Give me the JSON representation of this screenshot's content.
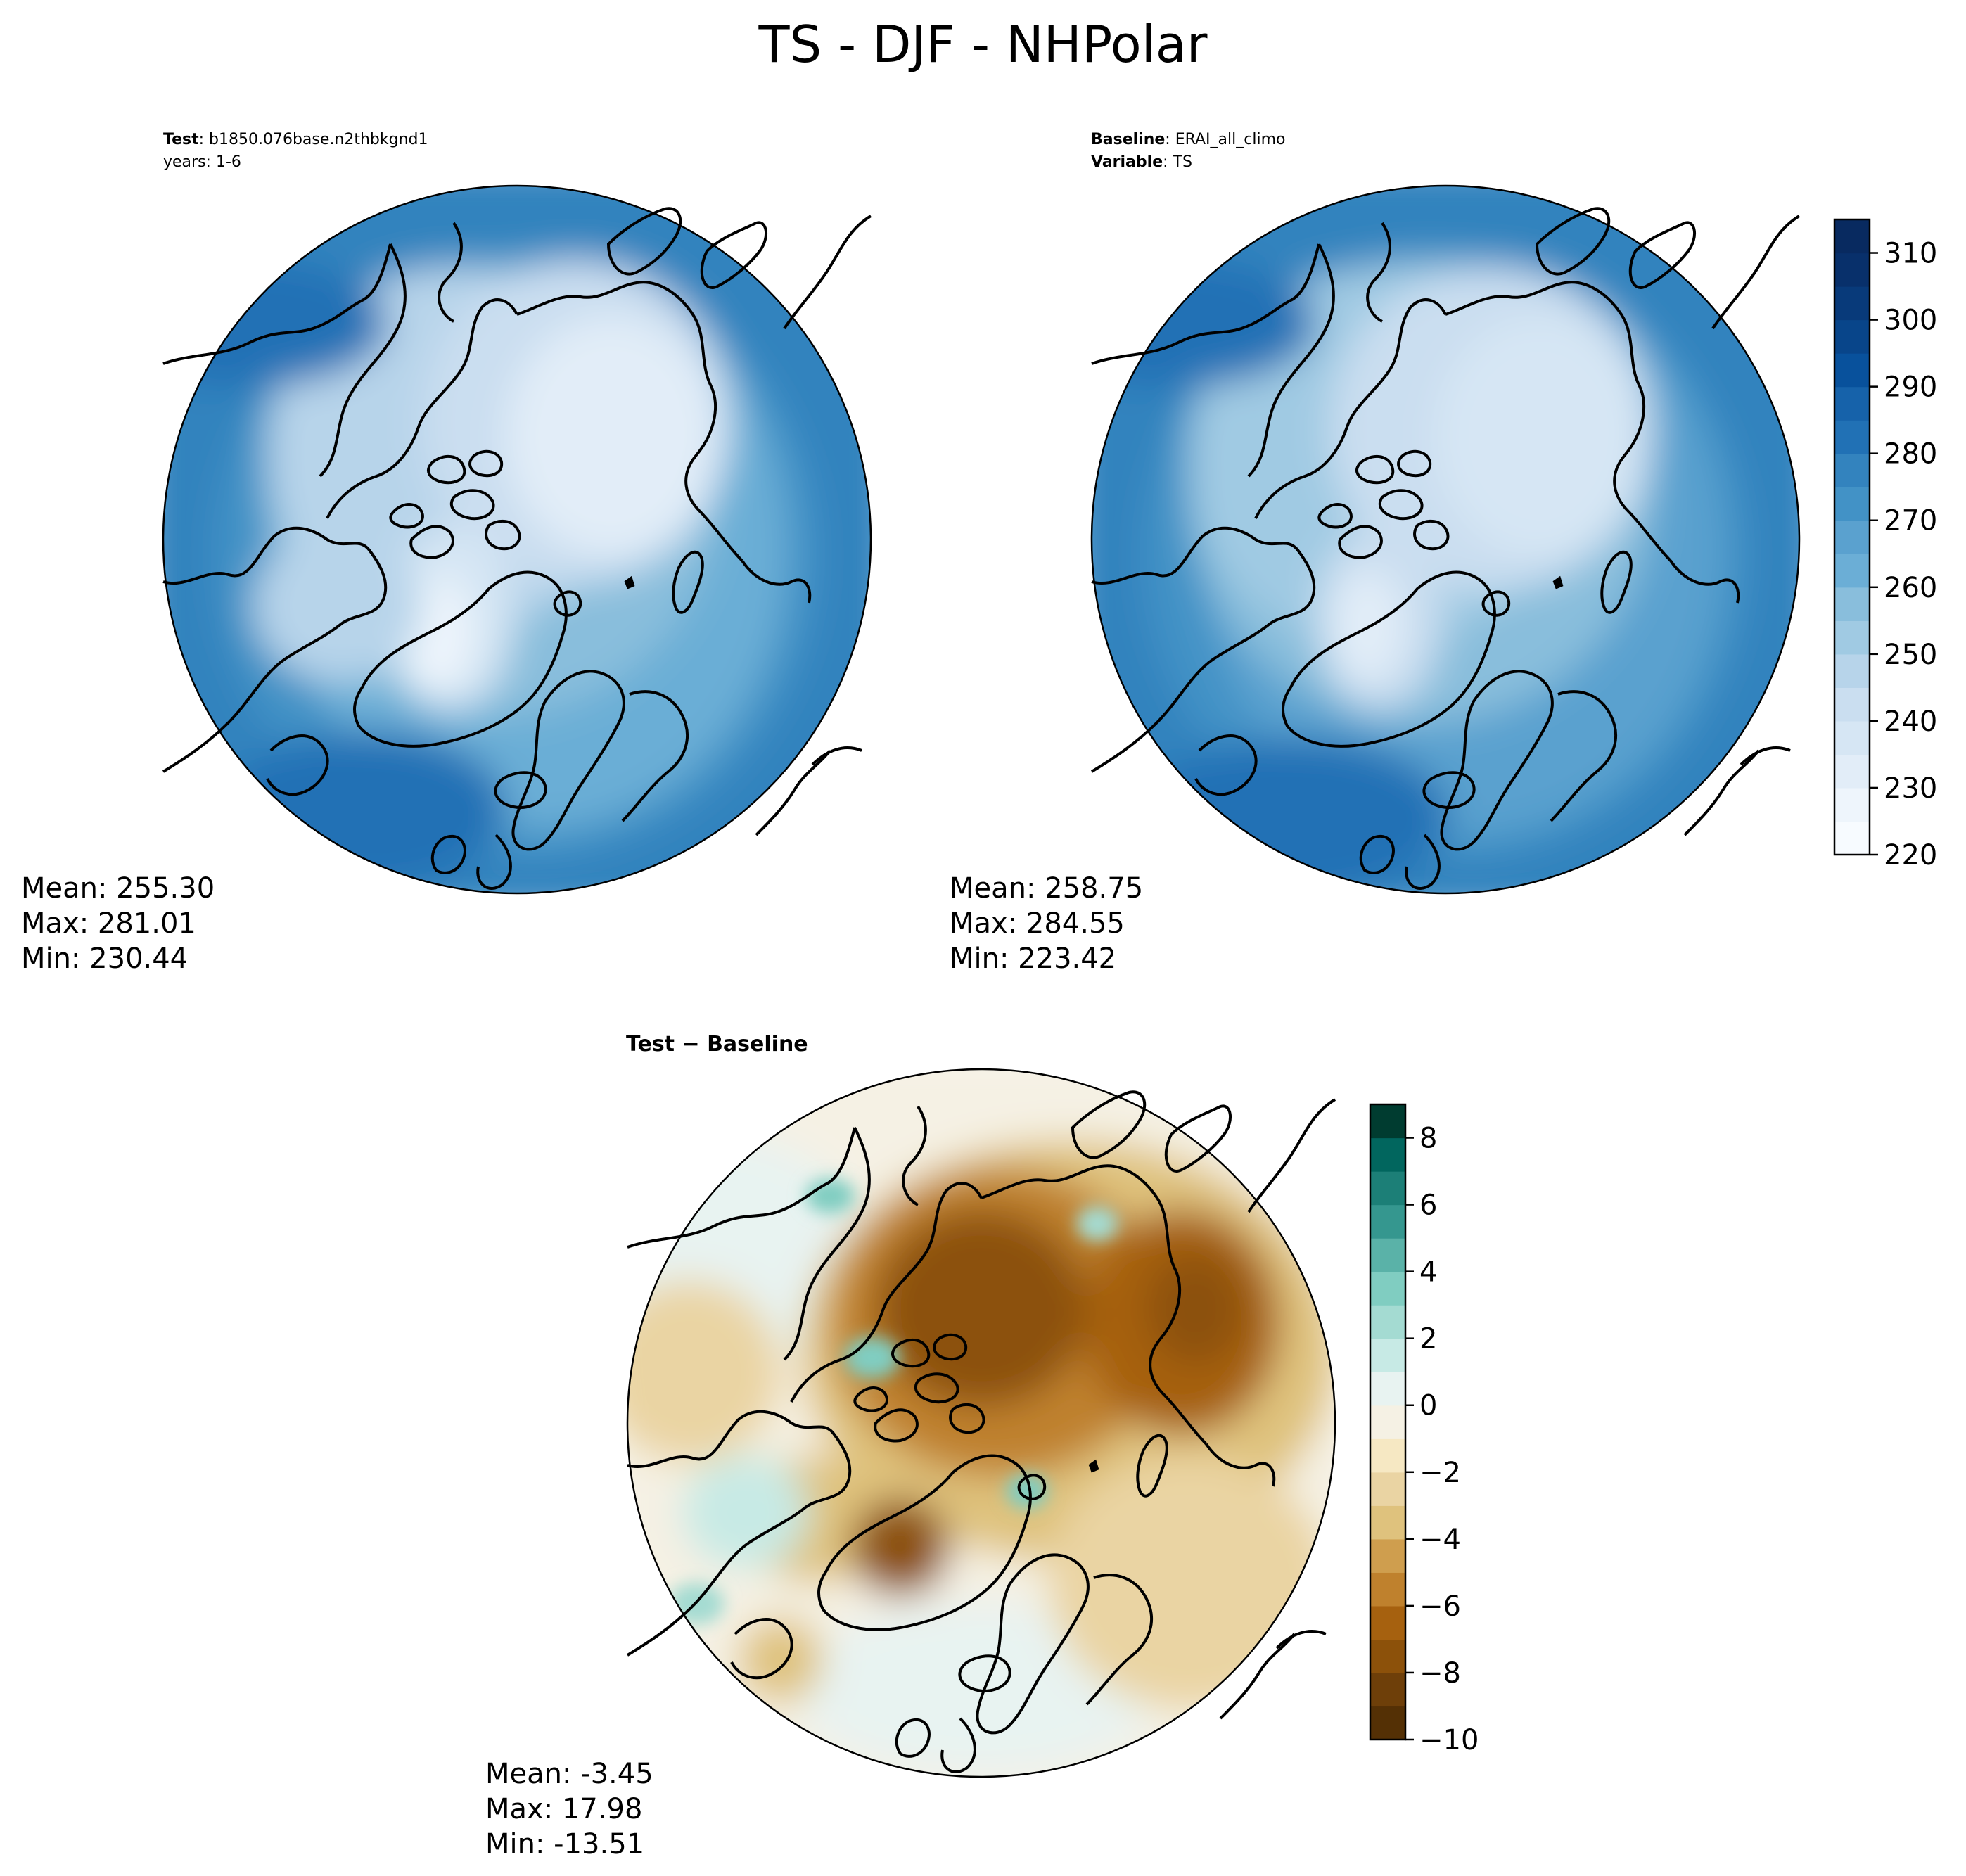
{
  "figure": {
    "title": "TS - DJF - NHPolar"
  },
  "panels": {
    "test": {
      "label_prefix": "Test",
      "label_value": "b1850.076base.n2thbkgnd1",
      "years": "years: 1-6",
      "mean": "Mean: 255.30",
      "max": "Max: 281.01",
      "min": "Min: 230.44"
    },
    "baseline": {
      "label_prefix": "Baseline",
      "label_value": "ERAI_all_climo",
      "variable_prefix": "Variable",
      "variable_value": "TS",
      "mean": "Mean: 258.75",
      "max": "Max: 284.55",
      "min": "Min: 223.42"
    },
    "difference": {
      "title_part1": "Test",
      "title_sep": " − ",
      "title_part2": "Baseline",
      "mean": "Mean: -3.45",
      "max": "Max: 17.98",
      "min": "Min: -13.51"
    }
  },
  "colorbars": {
    "ts": {
      "min": 220,
      "max": 315,
      "ticks": [
        220,
        230,
        240,
        250,
        260,
        270,
        280,
        290,
        300,
        310
      ],
      "tick_labels": [
        "220",
        "230",
        "240",
        "250",
        "260",
        "270",
        "280",
        "290",
        "300",
        "310"
      ],
      "colors": [
        "#f7fbff",
        "#eef5fc",
        "#e2edf8",
        "#d6e6f4",
        "#cadef0",
        "#b7d4ea",
        "#a0cae3",
        "#89bedc",
        "#6baed6",
        "#5aa1cf",
        "#4292c6",
        "#3383be",
        "#2171b5",
        "#1662aa",
        "#08519c",
        "#08458a",
        "#083a7a",
        "#08306b",
        "#082a60"
      ]
    },
    "diff": {
      "min": -10,
      "max": 9,
      "ticks": [
        -10,
        -8,
        -6,
        -4,
        -2,
        0,
        2,
        4,
        6,
        8
      ],
      "tick_labels": [
        "−10",
        "−8",
        "−6",
        "−4",
        "−2",
        "0",
        "2",
        "4",
        "6",
        "8"
      ],
      "colors": [
        "#543005",
        "#6e3f09",
        "#8c510a",
        "#a6610f",
        "#bf812d",
        "#cf9e4e",
        "#dfc27d",
        "#ead4a3",
        "#f6e8c3",
        "#f5f1e4",
        "#e8f3f1",
        "#c7eae5",
        "#a4dbd2",
        "#80cdc1",
        "#5ab2a8",
        "#35978f",
        "#1c7f77",
        "#01665e",
        "#003c30"
      ]
    }
  },
  "chart_data": [
    {
      "type": "heatmap",
      "title": "TS - DJF - NHPolar",
      "panel": "Test: b1850.076base.n2thbkgnd1",
      "projection": "north-polar-stereographic",
      "mean": 255.3,
      "max": 281.01,
      "min": 230.44,
      "color_range": [
        220,
        315
      ]
    },
    {
      "type": "heatmap",
      "panel": "Baseline: ERAI_all_climo",
      "projection": "north-polar-stereographic",
      "mean": 258.75,
      "max": 284.55,
      "min": 223.42,
      "color_range": [
        220,
        315
      ]
    },
    {
      "type": "heatmap",
      "panel": "Test − Baseline",
      "projection": "north-polar-stereographic",
      "mean": -3.45,
      "max": 17.98,
      "min": -13.51,
      "color_range": [
        -10,
        9
      ]
    }
  ]
}
